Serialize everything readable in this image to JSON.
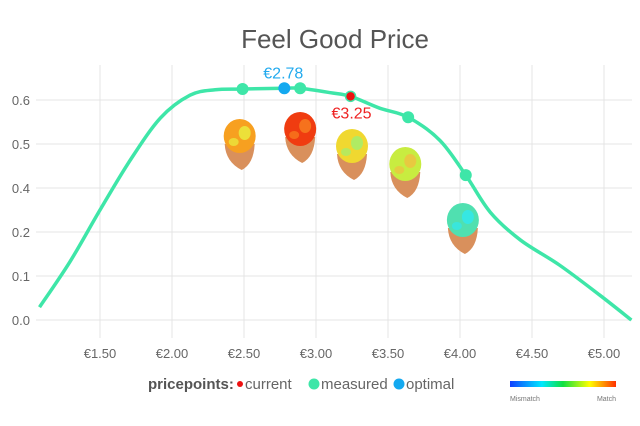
{
  "chart_data": {
    "type": "line",
    "title": "Feel Good Price",
    "xlabel": "",
    "ylabel": "",
    "xlim": [
      1.08,
      5.2
    ],
    "ylim": [
      0,
      0.6
    ],
    "grid": true,
    "x_ticks": [
      {
        "value": 1.5,
        "label": "€1.50"
      },
      {
        "value": 2.0,
        "label": "€2.00"
      },
      {
        "value": 2.5,
        "label": "€2.50"
      },
      {
        "value": 3.0,
        "label": "€3.00"
      },
      {
        "value": 3.5,
        "label": "€3.50"
      },
      {
        "value": 4.0,
        "label": "€4.00"
      },
      {
        "value": 4.5,
        "label": "€4.50"
      },
      {
        "value": 5.0,
        "label": "€5.00"
      }
    ],
    "y_tick_labels": [
      "0.6",
      "0.5",
      "0.4",
      "0.2",
      "0.1",
      "0.0"
    ],
    "series": [
      {
        "name": "feel good curve",
        "color": "#3ee6a8",
        "x": [
          1.08,
          1.29,
          1.5,
          1.71,
          1.92,
          2.125,
          2.3,
          2.49,
          2.78,
          2.89,
          3.1,
          3.24,
          3.44,
          3.64,
          3.86,
          4.04,
          4.21,
          4.42,
          4.69,
          4.97,
          5.19
        ],
        "y": [
          0.035,
          0.158,
          0.3,
          0.436,
          0.551,
          0.613,
          0.628,
          0.63,
          0.632,
          0.632,
          0.62,
          0.61,
          0.578,
          0.553,
          0.49,
          0.395,
          0.294,
          0.218,
          0.15,
          0.068,
          0.0
        ]
      }
    ],
    "pricepoints": {
      "measured": [
        {
          "x": 2.49,
          "y": 0.63
        },
        {
          "x": 2.89,
          "y": 0.632
        },
        {
          "x": 3.64,
          "y": 0.553
        },
        {
          "x": 4.04,
          "y": 0.395
        }
      ],
      "optimal": {
        "x": 2.78,
        "y": 0.632,
        "label": "€2.78"
      },
      "current": {
        "x": 3.24,
        "y": 0.61,
        "label": "€3.25"
      }
    },
    "heads": [
      {
        "x": 2.47,
        "match": 0.75
      },
      {
        "x": 2.89,
        "match": 0.92
      },
      {
        "x": 3.25,
        "match": 0.65
      },
      {
        "x": 3.62,
        "match": 0.55
      },
      {
        "x": 4.02,
        "match": 0.4
      }
    ],
    "colors": {
      "measured": "#3ee6a8",
      "optimal": "#14a9f0",
      "current": "#ee1111",
      "optimal_text": "#22aaee",
      "current_text": "#ee2222"
    }
  },
  "legend": {
    "title": "pricepoints:",
    "current": "current",
    "measured": "measured",
    "optimal": "optimal"
  },
  "colorbar": {
    "low": "Mismatch",
    "high": "Match"
  }
}
